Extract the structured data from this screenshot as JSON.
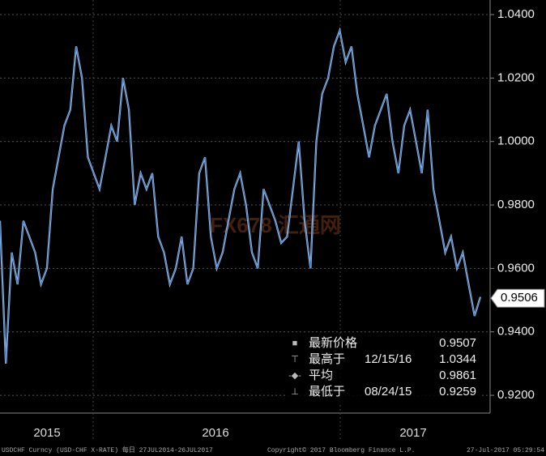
{
  "chart_data": {
    "type": "line",
    "series": [
      {
        "name": "USDCHF",
        "color": "#3c86e0",
        "values": [
          0.975,
          0.93,
          0.965,
          0.955,
          0.975,
          0.97,
          0.965,
          0.955,
          0.96,
          0.985,
          0.995,
          1.005,
          1.01,
          1.03,
          1.02,
          0.995,
          0.99,
          0.985,
          0.995,
          1.005,
          1.0,
          1.02,
          1.01,
          0.98,
          0.99,
          0.985,
          0.99,
          0.97,
          0.965,
          0.955,
          0.96,
          0.97,
          0.955,
          0.96,
          0.99,
          0.995,
          0.97,
          0.96,
          0.965,
          0.975,
          0.985,
          0.99,
          0.98,
          0.965,
          0.96,
          0.985,
          0.98,
          0.975,
          0.968,
          0.97,
          0.985,
          1.0,
          0.975,
          0.96,
          1.0,
          1.015,
          1.02,
          1.03,
          1.035,
          1.025,
          1.03,
          1.015,
          1.005,
          0.995,
          1.005,
          1.01,
          1.015,
          1.0,
          0.99,
          1.005,
          1.01,
          1.0,
          0.99,
          1.01,
          0.985,
          0.975,
          0.965,
          0.97,
          0.96,
          0.965,
          0.955,
          0.945,
          0.951
        ]
      }
    ],
    "ylim": [
      0.9144,
      1.0446
    ],
    "yticks": [
      {
        "value": 0.92,
        "label": "0.9200"
      },
      {
        "value": 0.94,
        "label": "0.9400"
      },
      {
        "value": 0.96,
        "label": "0.9600"
      },
      {
        "value": 0.98,
        "label": "0.9800"
      },
      {
        "value": 1.0,
        "label": "1.0000"
      },
      {
        "value": 1.02,
        "label": "1.0200"
      },
      {
        "value": 1.04,
        "label": "1.0400"
      }
    ],
    "grid": true,
    "period_labels": [
      "2015",
      "2016",
      "2017"
    ],
    "last_value": 0.9506,
    "stats": [
      {
        "label": "最新价格",
        "date": null,
        "value": 0.9507
      },
      {
        "label": "最高于",
        "date": "12/15/16",
        "value": 1.0344
      },
      {
        "label": "平均",
        "date": null,
        "value": 0.9861
      },
      {
        "label": "最低于",
        "date": "08/24/15",
        "value": 0.9259
      }
    ],
    "watermark": "FX678 汇通网",
    "footer": [
      "USDCHF Curncy (USD-CHF X-RATE)  每日 27JUL2014-26JUL2017",
      "Copyright© 2017 Bloomberg Finance L.P.",
      "27-Jul-2017 05:29:54"
    ]
  }
}
